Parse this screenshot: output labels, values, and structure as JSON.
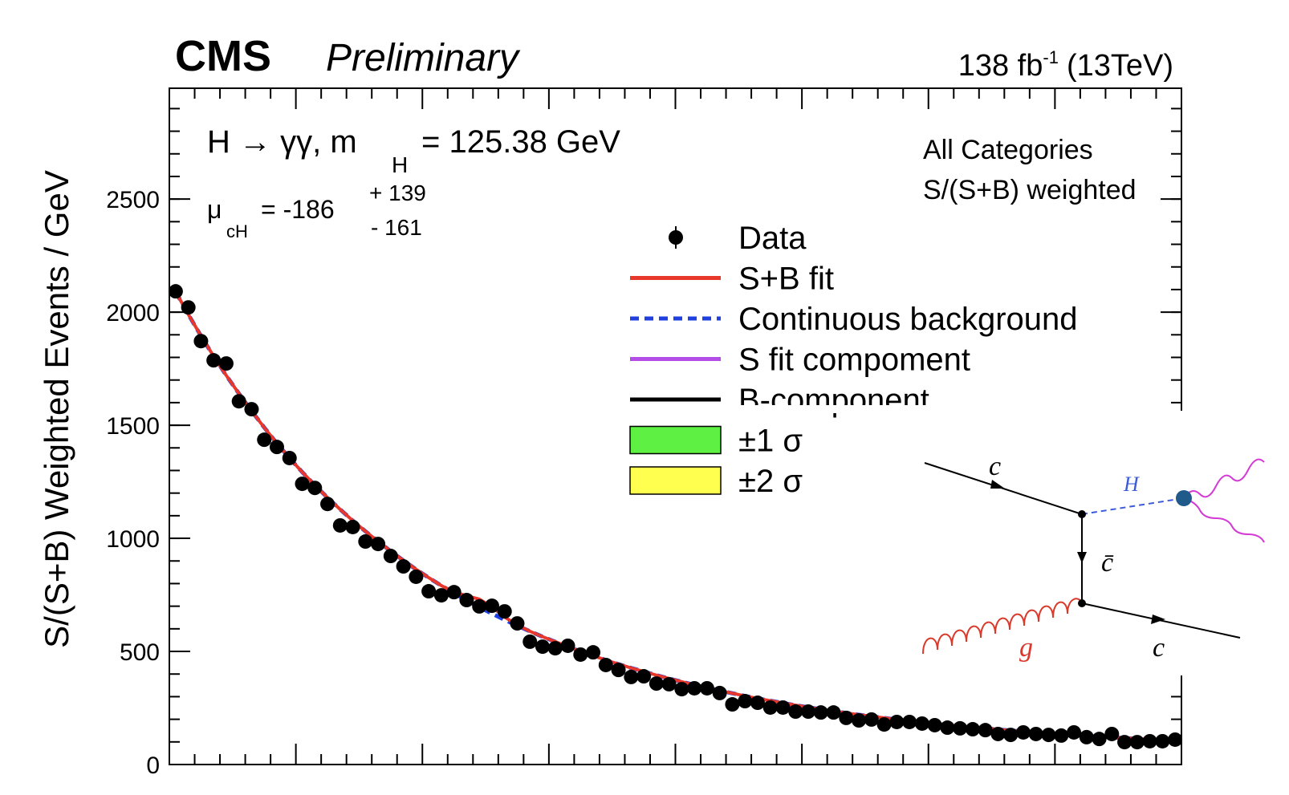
{
  "chart_data": {
    "type": "scatter",
    "title": "CMS",
    "subtitle": "Preliminary",
    "lumi": "138 fb",
    "lumi_sup": "-1",
    "lumi_tail": "(13TeV)",
    "y_label": "S/(S+B) Weighted Events / GeV",
    "annotations": {
      "process": "H → γγ, m",
      "process_sub": "H",
      "mass": "= 125.38 GeV",
      "mu": "μ",
      "mu_sub": "cH",
      "mu_value": "= -186",
      "mu_up": "+ 139",
      "mu_down": "- 161",
      "categories": "All Categories",
      "weighting": "S/(S+B) weighted"
    },
    "categories": [
      null,
      null,
      null,
      null,
      null,
      null,
      null,
      null,
      null,
      null,
      null,
      null,
      null,
      null,
      null,
      null,
      null,
      null,
      null,
      null,
      null,
      null,
      null,
      null,
      null,
      null,
      null,
      null,
      null,
      null,
      null,
      null,
      null,
      null,
      null,
      null,
      null,
      null,
      null,
      null,
      null,
      null,
      null,
      null,
      null,
      null,
      null,
      null,
      null,
      null,
      null,
      null,
      null,
      null,
      null,
      null,
      null,
      null,
      null,
      null,
      null,
      null,
      null,
      null,
      null,
      null,
      null,
      null,
      null,
      null,
      null,
      null,
      null,
      null,
      null,
      null,
      null,
      null,
      null,
      null
    ],
    "ylim": [
      0,
      2990
    ],
    "yticks": [
      0,
      500,
      1000,
      1500,
      2000,
      2500
    ],
    "series": [
      {
        "name": "Data",
        "color": "#000000",
        "style": "marker",
        "values": [
          2092,
          2021,
          1872,
          1787,
          1773,
          1606,
          1571,
          1436,
          1404,
          1355,
          1241,
          1223,
          1152,
          1057,
          1050,
          986,
          975,
          922,
          876,
          830,
          766,
          748,
          762,
          727,
          699,
          702,
          677,
          624,
          543,
          521,
          514,
          525,
          486,
          496,
          440,
          418,
          387,
          390,
          358,
          355,
          333,
          337,
          337,
          316,
          266,
          280,
          273,
          252,
          252,
          234,
          234,
          230,
          230,
          206,
          195,
          199,
          177,
          188,
          188,
          181,
          174,
          163,
          160,
          156,
          152,
          135,
          131,
          142,
          135,
          131,
          128,
          142,
          121,
          113,
          135,
          99,
          99,
          103,
          103,
          110
        ]
      },
      {
        "name": "S+B fit",
        "color": "#e8382c",
        "style": "line",
        "values": [
          2090,
          1990,
          1895,
          1805,
          1720,
          1640,
          1563,
          1490,
          1420,
          1355,
          1293,
          1235,
          1180,
          1128,
          1078,
          1031,
          986,
          943,
          902,
          863,
          826,
          791,
          763,
          746,
          731,
          697,
          652,
          617,
          589,
          565,
          543,
          521,
          500,
          481,
          462,
          444,
          427,
          411,
          395,
          380,
          366,
          352,
          339,
          327,
          315,
          303,
          292,
          282,
          272,
          262,
          253,
          244,
          236,
          228,
          220,
          213,
          206,
          199,
          193,
          187,
          181,
          175,
          170,
          165,
          160,
          155,
          150,
          146,
          142,
          138,
          134,
          130,
          127,
          123,
          120,
          117,
          114,
          111,
          108,
          105
        ]
      },
      {
        "name": "Continuous background",
        "color": "#1f3fe0",
        "style": "dashed",
        "values": [
          2090,
          1990,
          1895,
          1805,
          1720,
          1640,
          1563,
          1490,
          1420,
          1355,
          1293,
          1235,
          1180,
          1128,
          1078,
          1031,
          986,
          943,
          902,
          863,
          826,
          791,
          758,
          726,
          696,
          667,
          640,
          614,
          589,
          565,
          543,
          521,
          500,
          481,
          462,
          444,
          427,
          411,
          395,
          380,
          366,
          352,
          339,
          327,
          315,
          303,
          292,
          282,
          272,
          262,
          253,
          244,
          236,
          228,
          220,
          213,
          206,
          199,
          193,
          187,
          181,
          175,
          170,
          165,
          160,
          155,
          150,
          146,
          142,
          138,
          134,
          130,
          127,
          123,
          120,
          117,
          114,
          111,
          108,
          105
        ]
      }
    ],
    "legend_extra": [
      {
        "name": "S fit compoment",
        "color": "#b44ce8",
        "style": "line"
      },
      {
        "name": "B-component",
        "color": "#000000",
        "style": "line"
      },
      {
        "name": "±1 σ",
        "color": "#5ef043",
        "style": "box"
      },
      {
        "name": "±2 σ",
        "color": "#ffff4f",
        "style": "box"
      }
    ]
  },
  "diagram": {
    "labels": {
      "c_in": "c",
      "higgs": "H",
      "c_bar": "c̄",
      "gluon": "g",
      "c_out": "c"
    }
  }
}
